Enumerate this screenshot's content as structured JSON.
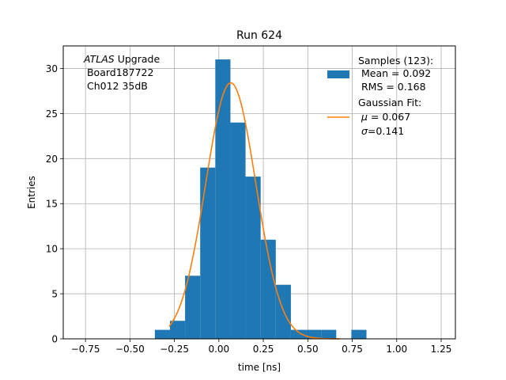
{
  "chart_data": {
    "type": "bar",
    "title": "Run 624",
    "xlabel": "time [ns]",
    "ylabel": "Entries",
    "xlim": [
      -0.875,
      1.33
    ],
    "ylim": [
      0,
      32.5
    ],
    "xticks": [
      -0.75,
      -0.5,
      -0.25,
      0.0,
      0.25,
      0.5,
      0.75,
      1.0,
      1.25
    ],
    "xtick_labels": [
      "−0.75",
      "−0.50",
      "−0.25",
      "0.00",
      "0.25",
      "0.50",
      "0.75",
      "1.00",
      "1.25"
    ],
    "yticks": [
      0,
      5,
      10,
      15,
      20,
      25,
      30
    ],
    "ytick_labels": [
      "0",
      "5",
      "10",
      "15",
      "20",
      "25",
      "30"
    ],
    "grid": true,
    "histogram": {
      "name": "Samples",
      "color": "#1f77b4",
      "bin_edges": [
        -0.36,
        -0.275,
        -0.19,
        -0.105,
        -0.02,
        0.065,
        0.15,
        0.235,
        0.32,
        0.405,
        0.49,
        0.575,
        0.66,
        0.745,
        0.83
      ],
      "counts": [
        1,
        2,
        7,
        19,
        31,
        24,
        18,
        11,
        6,
        1,
        1,
        1,
        0,
        1
      ]
    },
    "fit": {
      "name": "Gaussian Fit",
      "color": "#ff7f0e",
      "mu": 0.067,
      "sigma": 0.141,
      "amplitude": 28.4,
      "x_range": [
        -0.28,
        0.68
      ]
    },
    "legend_position": "top-right",
    "legend": {
      "samples_title": "Samples (123):",
      "samples_mean": " Mean = 0.092",
      "samples_rms": " RMS = 0.168",
      "fit_title": "Gaussian Fit:",
      "fit_mu_label": "μ",
      "fit_mu_value": " = 0.067",
      "fit_sigma_label": "σ",
      "fit_sigma_value": "=0.141"
    },
    "annotation": {
      "atlas": "ATLAS",
      "upgrade": " Upgrade",
      "board": " Board187722",
      "channel": " Ch012 35dB"
    }
  }
}
